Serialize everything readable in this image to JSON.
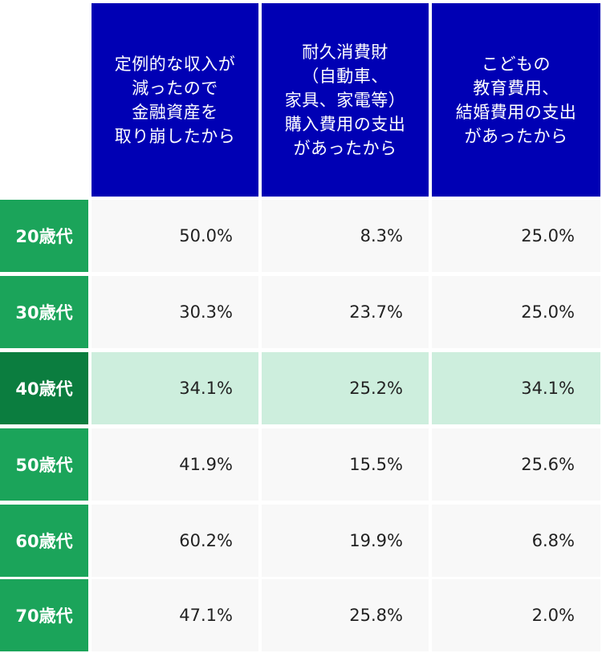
{
  "chart_data": {
    "type": "table",
    "columns": [
      "定例的な収入が\n減ったので\n金融資産を\n取り崩したから",
      "耐久消費財\n（自動車、\n家具、家電等）\n購入費用の支出\nがあったから",
      "こどもの\n教育費用、\n結婚費用の支出\nがあったから"
    ],
    "rows": [
      {
        "label": "20歳代",
        "values": [
          "50.0%",
          "8.3%",
          "25.0%"
        ],
        "highlight": false
      },
      {
        "label": "30歳代",
        "values": [
          "30.3%",
          "23.7%",
          "25.0%"
        ],
        "highlight": false
      },
      {
        "label": "40歳代",
        "values": [
          "34.1%",
          "25.2%",
          "34.1%"
        ],
        "highlight": true
      },
      {
        "label": "50歳代",
        "values": [
          "41.9%",
          "15.5%",
          "25.6%"
        ],
        "highlight": false
      },
      {
        "label": "60歳代",
        "values": [
          "60.2%",
          "19.9%",
          "6.8%"
        ],
        "highlight": false
      },
      {
        "label": "70歳代",
        "values": [
          "47.1%",
          "25.8%",
          "2.0%"
        ],
        "highlight": false
      }
    ],
    "colors": {
      "header": "#0000b4",
      "row_label": "#1ba45a",
      "row_label_highlight": "#0b7d3f",
      "cell": "#f8f8f8",
      "cell_highlight": "#cdeedd"
    }
  }
}
